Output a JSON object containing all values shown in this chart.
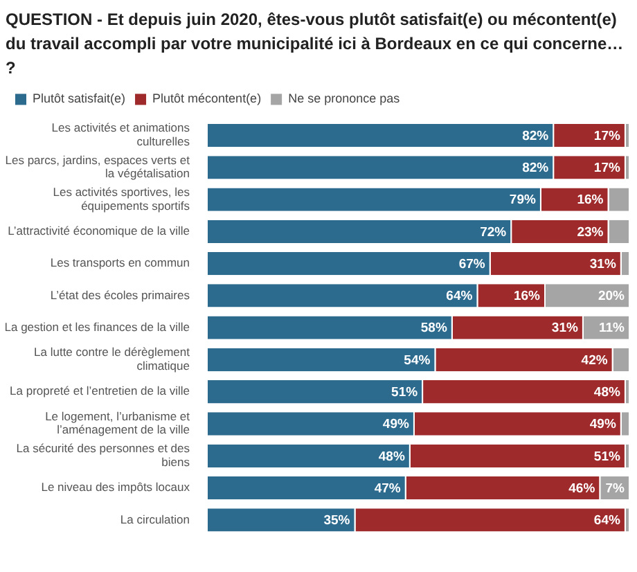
{
  "chart_data": {
    "type": "bar",
    "title": "QUESTION - Et depuis juin 2020, êtes-vous plutôt satisfait(e) ou mécontent(e) du travail accompli par votre municipalité ici à Bordeaux en ce qui concerne… ?",
    "categories": [
      "Les activités et animations culturelles",
      "Les parcs, jardins, espaces verts et la végétalisation",
      "Les activités sportives, les équipements sportifs",
      "L’attractivité économique de la ville",
      "Les transports en commun",
      "L’état des écoles primaires",
      "La gestion et les finances de la ville",
      "La lutte contre le dérèglement climatique",
      "La propreté et l’entretien de la ville",
      "Le logement, l’urbanisme et l’aménagement de la ville",
      "La sécurité des personnes et des biens",
      "Le niveau des impôts locaux",
      "La circulation"
    ],
    "series": [
      {
        "name": "Plutôt satisfait(e)",
        "color": "#2c6a8e",
        "values": [
          82,
          82,
          79,
          72,
          67,
          64,
          58,
          54,
          51,
          49,
          48,
          47,
          35
        ],
        "value_labels": [
          "82%",
          "82%",
          "79%",
          "72%",
          "67%",
          "64%",
          "58%",
          "54%",
          "51%",
          "49%",
          "48%",
          "47%",
          "35%"
        ]
      },
      {
        "name": "Plutôt mécontent(e)",
        "color": "#9e2a2b",
        "values": [
          17,
          17,
          16,
          23,
          31,
          16,
          31,
          42,
          48,
          49,
          51,
          46,
          64
        ],
        "value_labels": [
          "17%",
          "17%",
          "16%",
          "23%",
          "31%",
          "16%",
          "31%",
          "42%",
          "48%",
          "49%",
          "51%",
          "46%",
          "64%"
        ]
      },
      {
        "name": "Ne se prononce pas",
        "color": "#a5a5a5",
        "values": [
          1,
          1,
          5,
          5,
          2,
          20,
          11,
          4,
          1,
          2,
          1,
          7,
          1
        ],
        "value_labels": [
          null,
          null,
          null,
          null,
          null,
          "20%",
          "11%",
          null,
          null,
          null,
          null,
          "7%",
          null
        ]
      }
    ],
    "stacked": true,
    "orientation": "horizontal",
    "xlim": [
      0,
      100
    ],
    "tick_labels": "y",
    "legend": "top left"
  }
}
